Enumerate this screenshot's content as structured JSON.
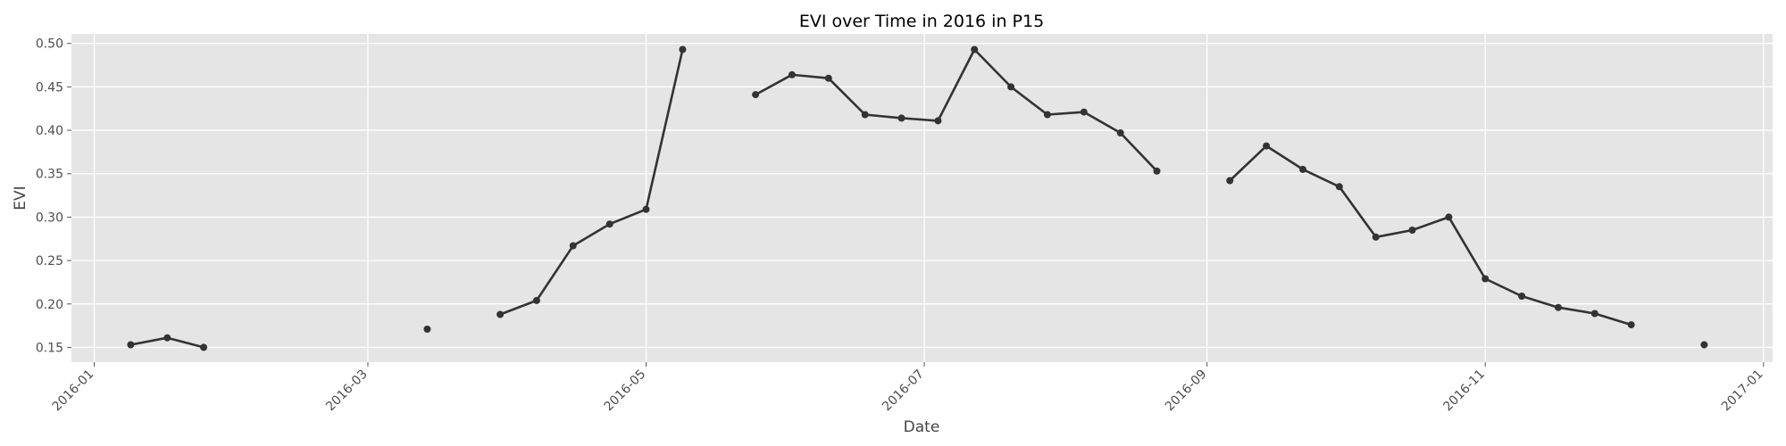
{
  "chart_data": {
    "type": "line",
    "title": "EVI over Time in 2016 in P15",
    "xlabel": "Date",
    "ylabel": "EVI",
    "x_type": "date",
    "xlim": [
      "2015-12-27",
      "2017-01-03"
    ],
    "ylim": [
      0.133,
      0.511
    ],
    "x_ticks": [
      "2016-01-01",
      "2016-03-01",
      "2016-05-01",
      "2016-07-01",
      "2016-09-01",
      "2016-11-01",
      "2017-01-01"
    ],
    "x_tick_labels": [
      "2016-01",
      "2016-03",
      "2016-05",
      "2016-07",
      "2016-09",
      "2016-11",
      "2017-01"
    ],
    "y_ticks": [
      0.15,
      0.2,
      0.25,
      0.3,
      0.35,
      0.4,
      0.45,
      0.5
    ],
    "y_tick_labels": [
      "0.15",
      "0.20",
      "0.25",
      "0.30",
      "0.35",
      "0.40",
      "0.45",
      "0.50"
    ],
    "grid": true,
    "background": "#e5e5e5",
    "series": [
      {
        "color": "#333333",
        "marker": "circle",
        "segments": [
          {
            "x": [
              "2016-01-09",
              "2016-01-17",
              "2016-01-25"
            ],
            "y": [
              0.153,
              0.161,
              0.15
            ]
          },
          {
            "x": [
              "2016-03-14"
            ],
            "y": [
              0.171
            ]
          },
          {
            "x": [
              "2016-03-30",
              "2016-04-07",
              "2016-04-15",
              "2016-04-23",
              "2016-05-01",
              "2016-05-09"
            ],
            "y": [
              0.188,
              0.204,
              0.267,
              0.292,
              0.309,
              0.493
            ]
          },
          {
            "x": [
              "2016-05-25",
              "2016-06-02",
              "2016-06-10",
              "2016-06-18",
              "2016-06-26",
              "2016-07-04",
              "2016-07-12",
              "2016-07-20",
              "2016-07-28",
              "2016-08-05",
              "2016-08-13",
              "2016-08-21"
            ],
            "y": [
              0.441,
              0.464,
              0.46,
              0.418,
              0.414,
              0.411,
              0.493,
              0.45,
              0.418,
              0.421,
              0.397,
              0.353
            ]
          },
          {
            "x": [
              "2016-09-06",
              "2016-09-14",
              "2016-09-22",
              "2016-09-30",
              "2016-10-08",
              "2016-10-16",
              "2016-10-24",
              "2016-11-01",
              "2016-11-09",
              "2016-11-17",
              "2016-11-25",
              "2016-12-03"
            ],
            "y": [
              0.342,
              0.382,
              0.355,
              0.335,
              0.277,
              0.285,
              0.3,
              0.229,
              0.209,
              0.196,
              0.189,
              0.176
            ]
          },
          {
            "x": [
              "2016-12-19"
            ],
            "y": [
              0.153
            ]
          }
        ]
      }
    ]
  }
}
